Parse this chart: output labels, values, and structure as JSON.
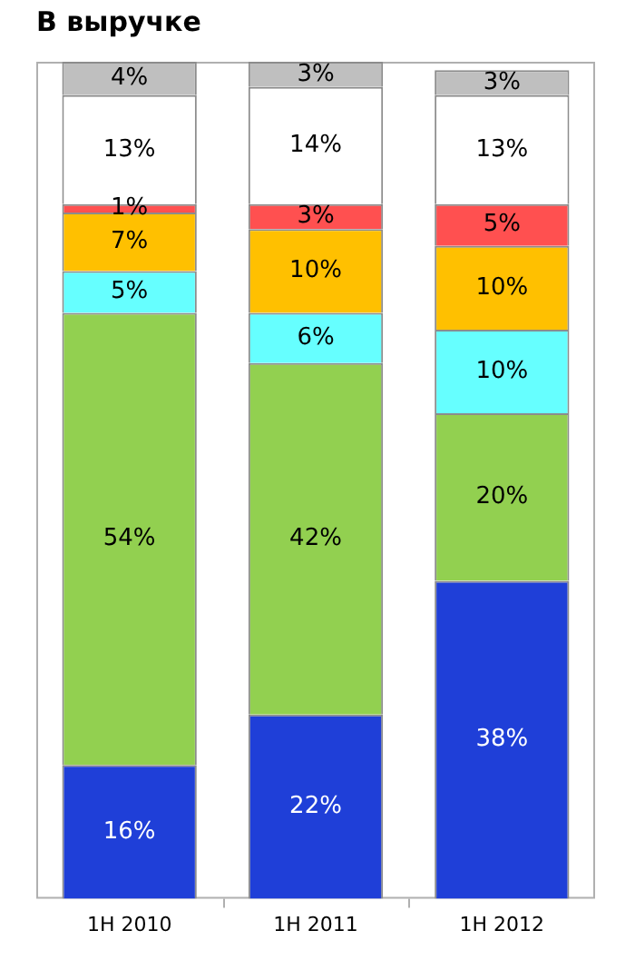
{
  "chart_data": {
    "type": "bar",
    "title": "В выручке",
    "stacked": true,
    "grid": false,
    "legend": false,
    "categories": [
      "1H 2010",
      "1H 2011",
      "1H 2012"
    ],
    "series": [
      {
        "color": "#1f3fd8",
        "values": [
          16,
          22,
          38
        ],
        "value_labels": [
          "16%",
          "22%",
          "38%"
        ]
      },
      {
        "color": "#92d050",
        "values": [
          54,
          42,
          20
        ],
        "value_labels": [
          "54%",
          "42%",
          "20%"
        ]
      },
      {
        "color": "#66ffff",
        "values": [
          5,
          6,
          10
        ],
        "value_labels": [
          "5%",
          "6%",
          "10%"
        ]
      },
      {
        "color": "#ffc000",
        "values": [
          7,
          10,
          10
        ],
        "value_labels": [
          "7%",
          "10%",
          "10%"
        ]
      },
      {
        "color": "#ff5050",
        "values": [
          1,
          3,
          5
        ],
        "value_labels": [
          "1%",
          "3%",
          "5%"
        ]
      },
      {
        "color": "#ffffff",
        "values": [
          13,
          14,
          13
        ],
        "value_labels": [
          "13%",
          "14%",
          "13%"
        ]
      },
      {
        "color": "#bfbfbf",
        "values": [
          4,
          3,
          3
        ],
        "value_labels": [
          "4%",
          "3%",
          "3%"
        ]
      }
    ]
  }
}
